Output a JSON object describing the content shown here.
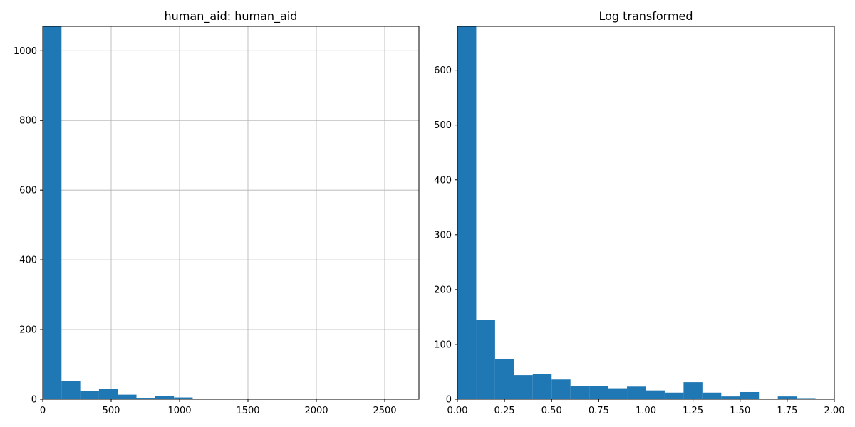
{
  "figure": {
    "bar_color": "#1f77b4",
    "grid_color": "#b0b0b0",
    "axes_color": "#000000"
  },
  "chart_data": [
    {
      "type": "bar",
      "title": "human_aid: human_aid",
      "xlabel": "",
      "ylabel": "",
      "grid": true,
      "xlim": [
        0,
        2750
      ],
      "ylim": [
        0,
        1070
      ],
      "xticks": [
        0,
        500,
        1000,
        1500,
        2000,
        2500
      ],
      "yticks": [
        0,
        200,
        400,
        600,
        800,
        1000
      ],
      "bin_edges": [
        0,
        137,
        274,
        411,
        548,
        685,
        822,
        959,
        1096,
        1233,
        1370,
        1507,
        1644,
        1781,
        1918,
        2055,
        2192,
        2329,
        2466,
        2603,
        2740
      ],
      "values": [
        1070,
        53,
        23,
        29,
        13,
        4,
        10,
        5,
        1,
        1,
        2,
        2,
        0,
        0,
        0,
        0,
        0,
        0,
        0,
        0
      ]
    },
    {
      "type": "bar",
      "title": "Log transformed",
      "xlabel": "",
      "ylabel": "",
      "grid": false,
      "xlim": [
        0,
        2.0
      ],
      "ylim": [
        0,
        680
      ],
      "xticks": [
        0.0,
        0.25,
        0.5,
        0.75,
        1.0,
        1.25,
        1.5,
        1.75,
        2.0
      ],
      "yticks": [
        0,
        100,
        200,
        300,
        400,
        500,
        600
      ],
      "bin_edges": [
        0.0,
        0.1,
        0.2,
        0.3,
        0.4,
        0.5,
        0.6,
        0.7,
        0.8,
        0.9,
        1.0,
        1.1,
        1.2,
        1.3,
        1.4,
        1.5,
        1.6,
        1.7,
        1.8,
        1.9,
        2.0
      ],
      "values": [
        680,
        145,
        74,
        44,
        46,
        36,
        24,
        24,
        20,
        23,
        16,
        12,
        31,
        12,
        5,
        13,
        0,
        5,
        2,
        1
      ]
    }
  ]
}
